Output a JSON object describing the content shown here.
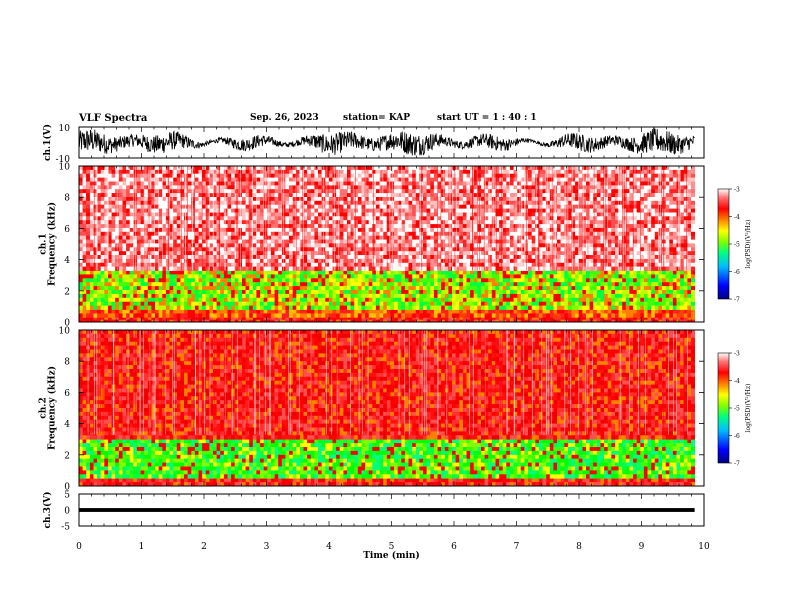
{
  "header": {
    "title": "VLF Spectra",
    "date": "Sep. 26, 2023",
    "station": "station= KAP",
    "start": "start  UT  =   1 : 40 : 1"
  },
  "colors": {
    "colormap": [
      "#000080",
      "#0000ff",
      "#00c0ff",
      "#00ff80",
      "#80ff00",
      "#ffff00",
      "#ff8000",
      "#ff0000",
      "#ff6060",
      "#ffffff"
    ],
    "waveform": "#000000"
  },
  "chart_data": [
    {
      "type": "line",
      "name": "ch1-waveform",
      "ylabel": "ch.1(V)",
      "ylim": [
        -10,
        10
      ],
      "yticks": [
        "10",
        "-10"
      ],
      "xlim": [
        0,
        10
      ],
      "x_extent": 9.85,
      "approx_amplitude": 8
    },
    {
      "type": "heatmap",
      "name": "ch1-spectrogram",
      "ylabel": "ch.1\nFrequency (kHz)",
      "ylim": [
        0,
        10
      ],
      "yticks": [
        "0",
        "2",
        "4",
        "6",
        "8",
        "10"
      ],
      "xlim": [
        0,
        10
      ],
      "x_extent": 9.85,
      "bands": [
        {
          "from": 0.0,
          "to": 0.3,
          "level": "red"
        },
        {
          "from": 0.3,
          "to": 0.8,
          "level": "orange"
        },
        {
          "from": 0.8,
          "to": 3.3,
          "level": "green-yellow"
        },
        {
          "from": 3.3,
          "to": 10,
          "level": "red-white"
        }
      ],
      "colorbar": {
        "label": "log(PSD)(V²/Hz)",
        "ticks": [
          "-3",
          "-4",
          "-5",
          "-6",
          "-7"
        ],
        "range": [
          -7,
          -3
        ]
      }
    },
    {
      "type": "heatmap",
      "name": "ch2-spectrogram",
      "ylabel": "ch.2\nFrequency (kHz)",
      "ylim": [
        0,
        10
      ],
      "yticks": [
        "0",
        "2",
        "4",
        "6",
        "8",
        "10"
      ],
      "xlim": [
        0,
        10
      ],
      "x_extent": 9.85,
      "bands": [
        {
          "from": 0.0,
          "to": 0.5,
          "level": "red"
        },
        {
          "from": 0.5,
          "to": 3.0,
          "level": "green"
        },
        {
          "from": 3.0,
          "to": 10,
          "level": "red"
        }
      ],
      "colorbar": {
        "label": "log(PSD)(V²/Hz)",
        "ticks": [
          "-3",
          "-4",
          "-5",
          "-6",
          "-7"
        ],
        "range": [
          -7,
          -3
        ]
      }
    },
    {
      "type": "line",
      "name": "ch3-waveform",
      "ylabel": "ch.3(V)",
      "ylim": [
        -5,
        5
      ],
      "yticks": [
        "5",
        "0",
        "-5"
      ],
      "xlim": [
        0,
        10
      ],
      "x_extent": 9.85,
      "approx_level": 0,
      "approx_amplitude": 0.6
    }
  ],
  "xaxis": {
    "label": "Time (min)",
    "ticks": [
      "0",
      "1",
      "2",
      "3",
      "4",
      "5",
      "6",
      "7",
      "8",
      "9",
      "10"
    ]
  }
}
